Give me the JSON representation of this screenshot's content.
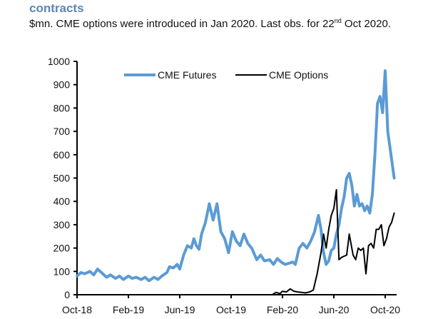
{
  "header": {
    "title": "contracts",
    "subtitle_pre": "$mn. CME options were introduced in Jan 2020. Last obs. for 22",
    "subtitle_sup": "nd",
    "subtitle_post": " Oct 2020."
  },
  "chart_data": {
    "type": "line",
    "title": "contracts",
    "subtitle": "$mn. CME options were introduced in Jan 2020. Last obs. for 22nd Oct 2020.",
    "xlabel": "",
    "ylabel": "",
    "ylim": [
      0,
      1000
    ],
    "yticks": [
      0,
      100,
      200,
      300,
      400,
      500,
      600,
      700,
      800,
      900,
      1000
    ],
    "xticks": [
      "Oct-18",
      "Feb-19",
      "Jun-19",
      "Oct-19",
      "Feb-20",
      "Jun-20",
      "Oct-20"
    ],
    "x_unit": "months since Oct-18",
    "xlim": [
      0,
      24.7
    ],
    "grid": false,
    "legend_position": "top-center",
    "colors": {
      "CME Futures": "#5b9bd5",
      "CME Options": "#000000"
    },
    "series": [
      {
        "name": "CME Futures",
        "x": [
          0,
          0.3,
          0.6,
          1.0,
          1.3,
          1.6,
          2.0,
          2.3,
          2.6,
          3.0,
          3.3,
          3.6,
          4.0,
          4.3,
          4.6,
          5.0,
          5.3,
          5.6,
          6.0,
          6.3,
          6.6,
          7.0,
          7.2,
          7.5,
          7.8,
          8.0,
          8.3,
          8.6,
          8.9,
          9.1,
          9.3,
          9.5,
          9.7,
          10.0,
          10.3,
          10.6,
          10.9,
          11.2,
          11.5,
          11.8,
          12.1,
          12.4,
          12.7,
          13.0,
          13.3,
          13.6,
          14.0,
          14.3,
          14.6,
          15.0,
          15.3,
          15.6,
          15.9,
          16.2,
          16.5,
          16.8,
          17.0,
          17.3,
          17.6,
          17.9,
          18.2,
          18.5,
          18.8,
          19.0,
          19.2,
          19.4,
          19.6,
          19.8,
          20.0,
          20.2,
          20.4,
          20.6,
          20.8,
          21.0,
          21.2,
          21.4,
          21.6,
          21.8,
          22.0,
          22.2,
          22.4,
          22.6,
          22.8,
          23.0,
          23.2,
          23.4,
          23.6,
          23.8,
          24.0,
          24.2,
          24.4,
          24.7
        ],
        "values": [
          80,
          95,
          90,
          100,
          85,
          110,
          90,
          75,
          85,
          70,
          80,
          65,
          80,
          70,
          75,
          65,
          75,
          60,
          75,
          65,
          80,
          95,
          120,
          115,
          130,
          110,
          170,
          210,
          200,
          240,
          210,
          195,
          260,
          310,
          390,
          320,
          390,
          270,
          240,
          180,
          270,
          230,
          210,
          260,
          220,
          200,
          150,
          170,
          145,
          150,
          130,
          155,
          140,
          130,
          135,
          140,
          130,
          200,
          220,
          200,
          230,
          270,
          340,
          280,
          180,
          130,
          145,
          190,
          200,
          260,
          300,
          370,
          420,
          500,
          520,
          470,
          380,
          430,
          380,
          390,
          360,
          380,
          350,
          430,
          600,
          820,
          850,
          780,
          960,
          700,
          620,
          500
        ]
      },
      {
        "name": "CME Options",
        "x": [
          15.2,
          15.5,
          15.8,
          16.0,
          16.3,
          16.6,
          16.9,
          17.2,
          17.5,
          17.8,
          18.1,
          18.4,
          18.7,
          19.0,
          19.2,
          19.4,
          19.6,
          19.8,
          20.0,
          20.2,
          20.4,
          20.6,
          20.8,
          21.0,
          21.2,
          21.5,
          21.7,
          21.9,
          22.1,
          22.3,
          22.5,
          22.7,
          22.9,
          23.1,
          23.3,
          23.5,
          23.7,
          23.9,
          24.1,
          24.3,
          24.5,
          24.7
        ],
        "values": [
          0,
          10,
          5,
          15,
          12,
          25,
          15,
          12,
          10,
          8,
          12,
          20,
          90,
          180,
          260,
          200,
          280,
          340,
          370,
          450,
          150,
          160,
          165,
          170,
          260,
          170,
          150,
          200,
          190,
          200,
          90,
          210,
          220,
          200,
          280,
          280,
          300,
          210,
          240,
          290,
          310,
          350
        ]
      }
    ]
  }
}
